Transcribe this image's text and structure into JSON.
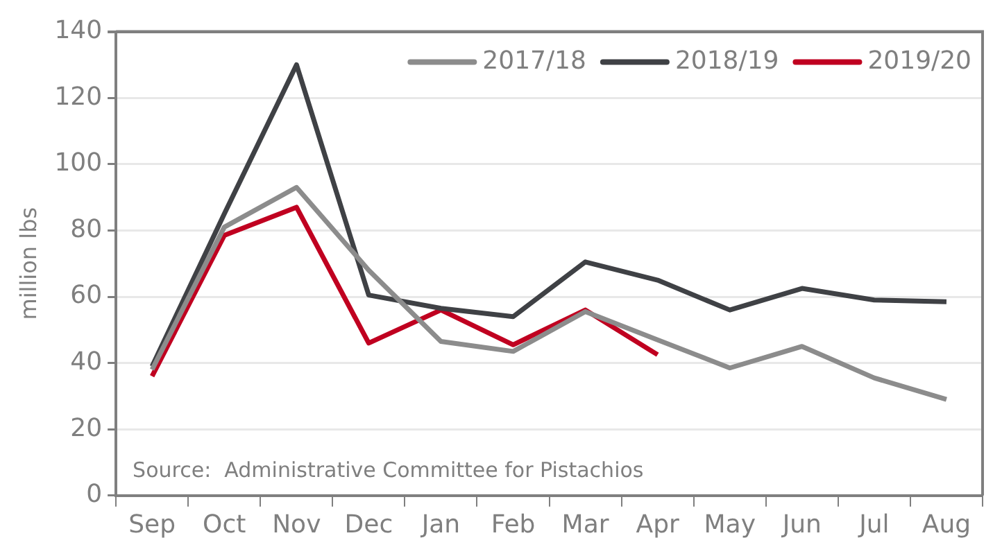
{
  "chart_data": {
    "type": "line",
    "ylabel": "million lbs",
    "categories": [
      "Sep",
      "Oct",
      "Nov",
      "Dec",
      "Jan",
      "Feb",
      "Mar",
      "Apr",
      "May",
      "Jun",
      "Jul",
      "Aug"
    ],
    "series": [
      {
        "name": "2017/18",
        "color": "#8c8c8c",
        "values": [
          38,
          81,
          93,
          68,
          46.5,
          43.5,
          55.5,
          47,
          38.5,
          45,
          35.5,
          29
        ]
      },
      {
        "name": "2018/19",
        "color": "#3f4145",
        "values": [
          39,
          85,
          130,
          60.5,
          56.5,
          54,
          70.5,
          65,
          56,
          62.5,
          59,
          58.5
        ]
      },
      {
        "name": "2019/20",
        "color": "#c00020",
        "values": [
          36,
          78.5,
          87,
          46,
          56,
          45.5,
          56,
          42.5,
          null,
          null,
          null,
          null
        ]
      }
    ],
    "ylim": [
      0,
      140
    ],
    "yticks": [
      0,
      20,
      40,
      60,
      80,
      100,
      120,
      140
    ],
    "grid": "y",
    "legend": "top right",
    "marker": "none",
    "line_style": "solid",
    "annotations": [
      "Source:  Administrative Committee for Pistachios"
    ]
  }
}
